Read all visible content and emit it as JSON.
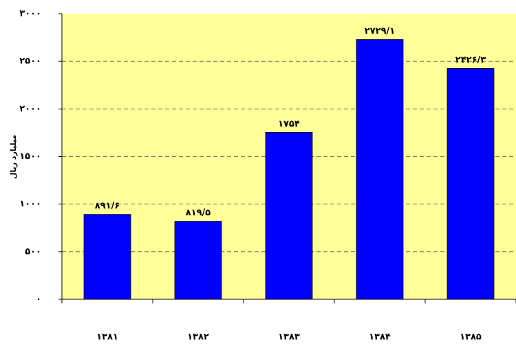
{
  "chart_data": {
    "type": "bar",
    "y_label": "میلیارد ریال",
    "categories": [
      "۱۳۸۱",
      "۱۳۸۲",
      "۱۳۸۳",
      "۱۳۸۴",
      "۱۳۸۵"
    ],
    "values": [
      891.6,
      819.5,
      1754,
      2729.1,
      2426.3
    ],
    "value_labels": [
      "۸۹۱/۶",
      "۸۱۹/۵",
      "۱۷۵۴",
      "۲۷۲۹/۱",
      "۲۴۲۶/۳"
    ],
    "color": "#0000ff",
    "background": "#ffff99",
    "ylim": [
      0,
      3000
    ],
    "yticks": [
      {
        "value": 0,
        "label": "۰"
      },
      {
        "value": 500,
        "label": "۵۰۰"
      },
      {
        "value": 1000,
        "label": "۱۰۰۰"
      },
      {
        "value": 1500,
        "label": "۱۵۰۰"
      },
      {
        "value": 2000,
        "label": "۲۰۰۰"
      },
      {
        "value": 2500,
        "label": "۲۵۰۰"
      },
      {
        "value": 3000,
        "label": "۳۰۰۰"
      }
    ],
    "grid": true
  }
}
